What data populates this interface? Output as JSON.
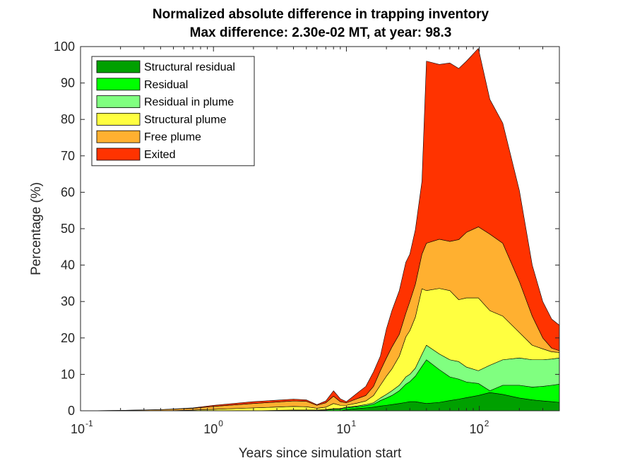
{
  "chart_data": {
    "type": "area",
    "title": "Normalized absolute difference in trapping inventory",
    "subtitle": "Max difference: 2.30e-02 MT, at year: 98.3",
    "xlabel": "Years since simulation start",
    "ylabel": "Percentage (%)",
    "xscale": "log",
    "xlim": [
      0.1,
      400
    ],
    "ylim": [
      0,
      100
    ],
    "x_ticks": [
      {
        "value": 0.1,
        "base": "10",
        "exp": "-1"
      },
      {
        "value": 1,
        "base": "10",
        "exp": "0"
      },
      {
        "value": 10,
        "base": "10",
        "exp": "1"
      },
      {
        "value": 100,
        "base": "10",
        "exp": "2"
      }
    ],
    "y_ticks": [
      "0",
      "10",
      "20",
      "30",
      "40",
      "50",
      "60",
      "70",
      "80",
      "90",
      "100"
    ],
    "stacked": true,
    "grid": false,
    "legend_position": "top-left",
    "x": [
      0.1,
      0.2,
      0.4,
      0.7,
      1.0,
      2.0,
      4.0,
      5.0,
      6.0,
      7.0,
      8.0,
      9.0,
      10.0,
      12.0,
      14.0,
      16.0,
      18.0,
      20.0,
      22.0,
      25.0,
      28.0,
      30.0,
      33.0,
      37.0,
      40.0,
      50.0,
      60.0,
      70.0,
      80.0,
      98.3,
      120.0,
      150.0,
      200.0,
      250.0,
      300.0,
      350.0,
      400.0
    ],
    "series": [
      {
        "name": "Structural residual",
        "color": "#00a000",
        "values": [
          0,
          0,
          0,
          0,
          0,
          0,
          0,
          0,
          0,
          0,
          0,
          0,
          0.3,
          0.6,
          0.8,
          1.0,
          1.3,
          1.5,
          1.7,
          2.0,
          2.3,
          2.5,
          2.5,
          2.2,
          2.0,
          2.3,
          2.8,
          3.2,
          3.6,
          4.2,
          5.0,
          4.5,
          3.5,
          3.0,
          2.7,
          2.5,
          2.3
        ]
      },
      {
        "name": "Residual",
        "color": "#00ff00",
        "values": [
          0,
          0,
          0,
          0,
          0,
          0,
          0.1,
          0.1,
          0.1,
          0.2,
          0.4,
          0.4,
          0.5,
          0.5,
          0.6,
          0.8,
          1.5,
          2.0,
          2.5,
          3.5,
          5.0,
          5.5,
          7.0,
          10.0,
          12.0,
          9.0,
          6.5,
          5.5,
          4.3,
          3.3,
          0.5,
          2.5,
          3.5,
          3.5,
          4.0,
          4.5,
          5.0
        ]
      },
      {
        "name": "Residual in plume",
        "color": "#80ff80",
        "values": [
          0,
          0,
          0,
          0,
          0,
          0,
          0.1,
          0.1,
          0.1,
          0.1,
          0.2,
          0.2,
          0.2,
          0.2,
          0.3,
          0.4,
          0.7,
          1.0,
          1.3,
          1.5,
          2.0,
          2.0,
          2.2,
          3.3,
          4.0,
          4.3,
          4.7,
          4.8,
          4.1,
          3.5,
          7.0,
          7.0,
          7.5,
          7.5,
          7.3,
          7.2,
          7.2
        ]
      },
      {
        "name": "Structural plume",
        "color": "#ffff40",
        "values": [
          0,
          0,
          0,
          0.2,
          0.4,
          0.8,
          1.0,
          0.9,
          0.5,
          0.7,
          1.4,
          0.9,
          0.5,
          0.8,
          1.0,
          2.0,
          3.5,
          5.0,
          6.0,
          8.0,
          11.0,
          12.0,
          14.0,
          18.0,
          15.0,
          18.0,
          19.0,
          17.0,
          19.0,
          20.0,
          15.0,
          12.0,
          7.0,
          4.0,
          3.0,
          2.0,
          1.5
        ]
      },
      {
        "name": "Free plume",
        "color": "#ffb030",
        "values": [
          0,
          0.1,
          0.3,
          0.5,
          0.8,
          1.2,
          1.5,
          1.5,
          0.8,
          1.2,
          2.0,
          1.0,
          0.7,
          1.2,
          1.5,
          2.5,
          4.0,
          5.0,
          6.0,
          6.0,
          6.5,
          8.0,
          9.0,
          9.5,
          13.0,
          13.5,
          13.5,
          16.5,
          18.0,
          19.5,
          21.0,
          20.0,
          14.0,
          8.0,
          3.0,
          1.0,
          0.5
        ]
      },
      {
        "name": "Exited",
        "color": "#ff3300",
        "values": [
          0,
          0,
          0,
          0.1,
          0.3,
          0.5,
          0.5,
          0.4,
          0.2,
          0.5,
          1.5,
          0.8,
          0.3,
          1.5,
          2.5,
          4.0,
          4.0,
          8.0,
          10.0,
          12.0,
          14.0,
          13.0,
          15.0,
          20.0,
          50.0,
          48.0,
          49.0,
          47.0,
          47.0,
          49.0,
          37.0,
          33.0,
          25.0,
          14.0,
          10.0,
          8.0,
          7.0
        ]
      }
    ]
  }
}
